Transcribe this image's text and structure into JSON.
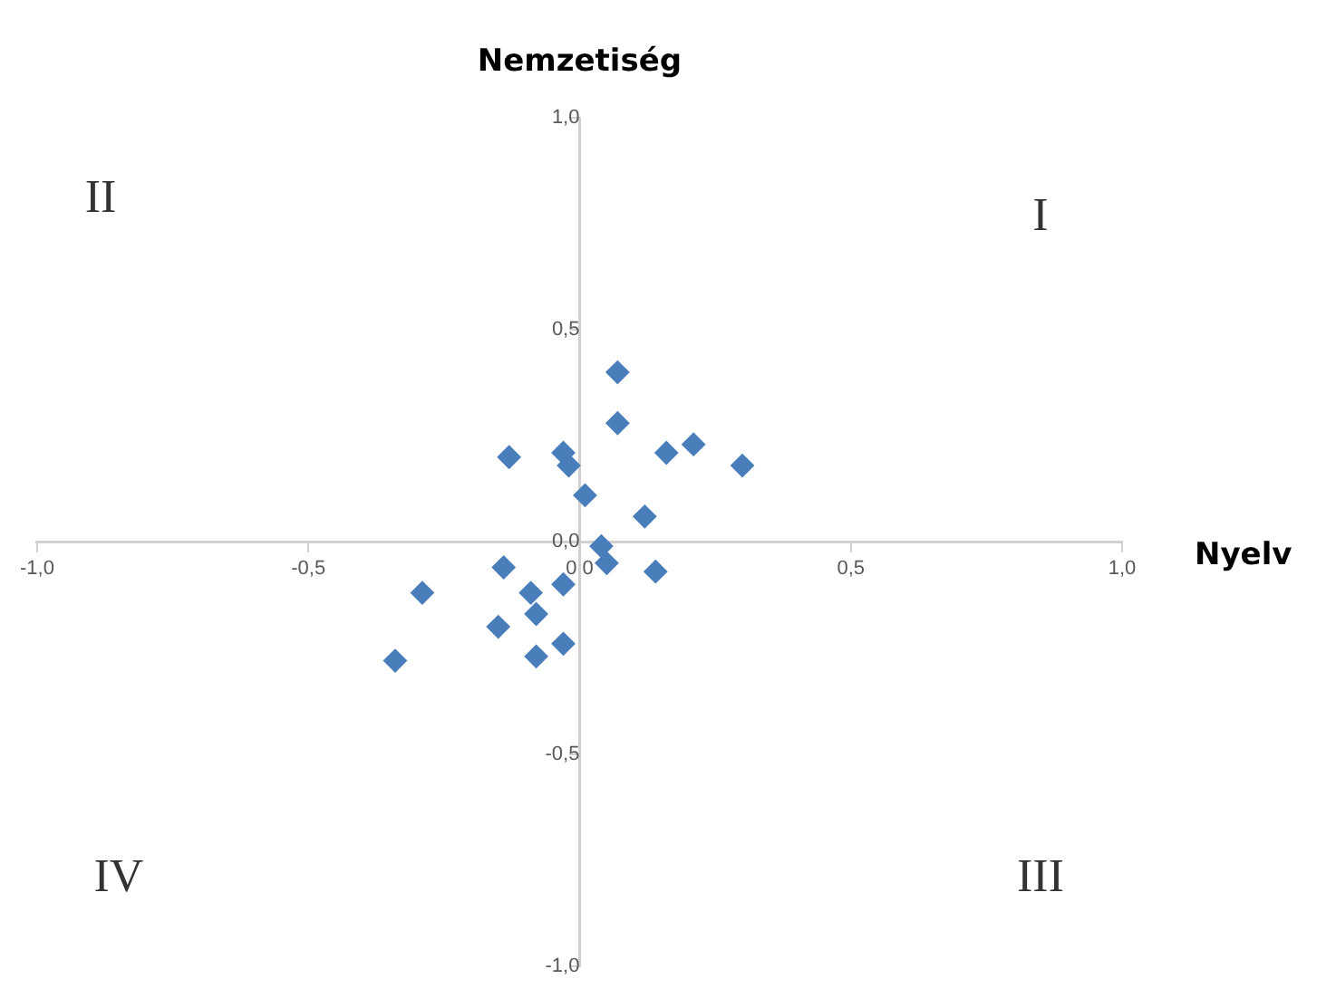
{
  "chart_data": {
    "type": "scatter",
    "xlabel": "Nyelv",
    "ylabel": "Nemzetiség",
    "annotations": [
      "II",
      "I",
      "IV",
      "III"
    ],
    "x": [
      0.07,
      0.07,
      -0.13,
      -0.03,
      -0.02,
      0.01,
      0.16,
      0.21,
      0.3,
      0.12,
      0.04,
      0.05,
      0.14,
      -0.14,
      -0.09,
      -0.29,
      -0.03,
      -0.08,
      -0.15,
      -0.08,
      -0.03,
      -0.34
    ],
    "series": [
      {
        "color": "#4a7ebb",
        "values": [
          0.4,
          0.28,
          0.2,
          0.21,
          0.18,
          0.11,
          0.21,
          0.23,
          0.18,
          0.06,
          -0.01,
          -0.05,
          -0.07,
          -0.06,
          -0.12,
          -0.12,
          -0.1,
          -0.17,
          -0.2,
          -0.27,
          -0.24,
          -0.28
        ]
      }
    ],
    "xlim": [
      -1,
      1
    ],
    "ylim": [
      -1,
      1
    ],
    "xticks": [
      {
        "value": -1,
        "label": "-1,0"
      },
      {
        "value": -0.5,
        "label": "-0,5"
      },
      {
        "value": 0,
        "label": "0,0"
      },
      {
        "value": 0.5,
        "label": "0,5"
      },
      {
        "value": 1,
        "label": "1,0"
      }
    ],
    "yticks": [
      {
        "value": -1,
        "label": "-1,0"
      },
      {
        "value": -0.5,
        "label": "-0,5"
      },
      {
        "value": 0,
        "label": "0,0"
      },
      {
        "value": 0.5,
        "label": "0,5"
      },
      {
        "value": 1,
        "label": "1,0"
      }
    ],
    "grid": false,
    "legend": false,
    "marker": "diamond"
  }
}
